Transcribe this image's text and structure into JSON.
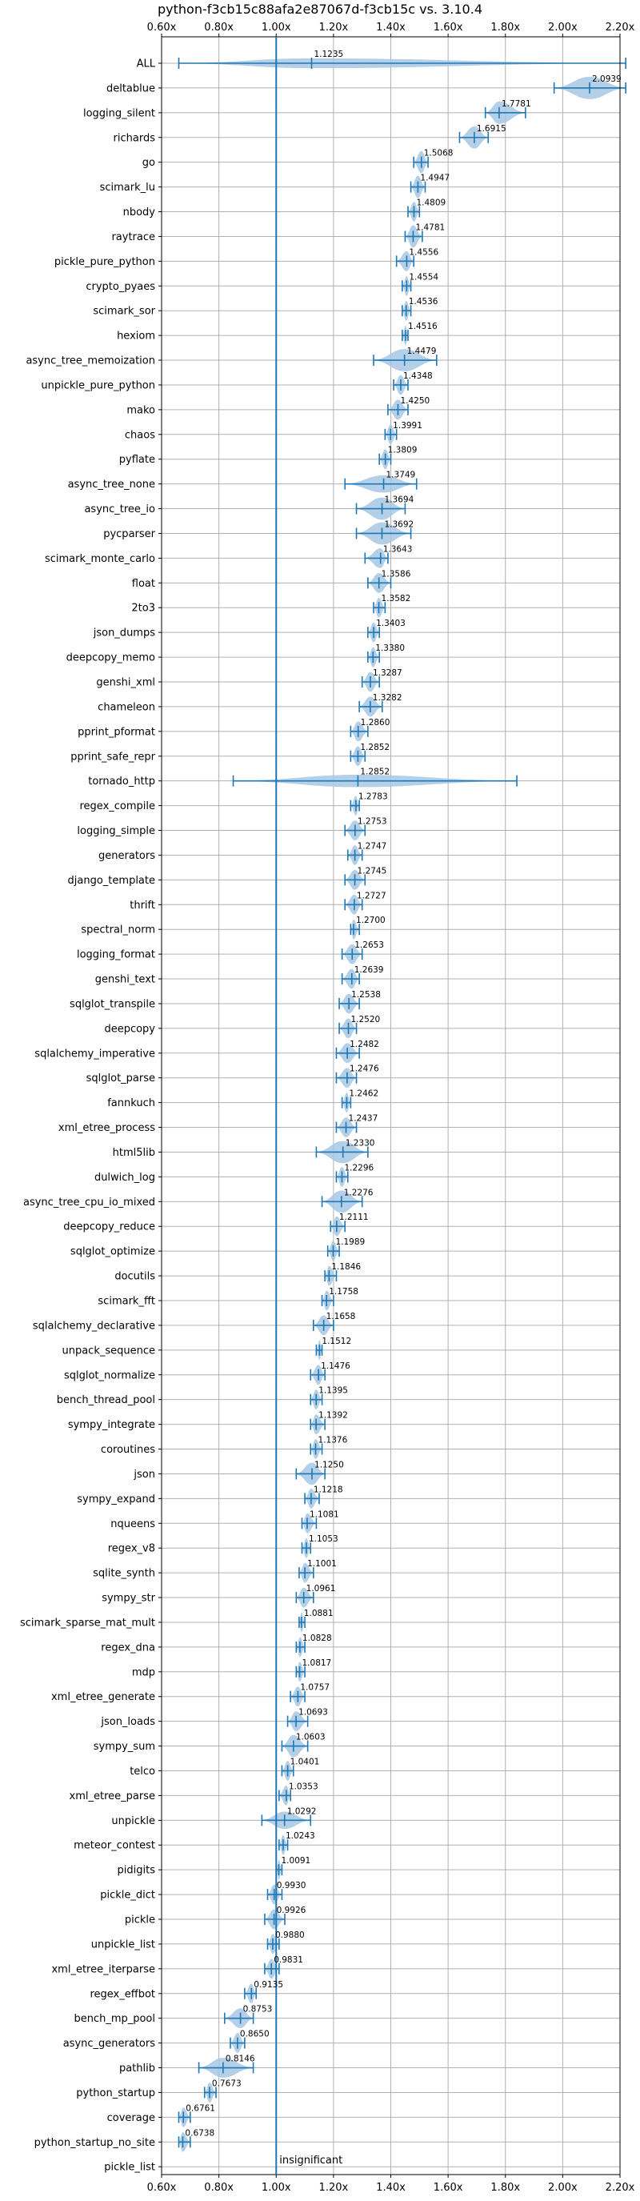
{
  "chart_data": {
    "type": "violin",
    "title": "python-f3cb15c88afa2e87067d-f3cb15c vs. 3.10.4",
    "xlim": [
      0.6,
      2.2
    ],
    "xticks": [
      0.6,
      0.8,
      1.0,
      1.2,
      1.4,
      1.6,
      1.8,
      2.0,
      2.2
    ],
    "xtick_labels": [
      "0.60x",
      "0.80x",
      "1.00x",
      "1.20x",
      "1.40x",
      "1.60x",
      "1.80x",
      "2.00x",
      "2.20x"
    ],
    "reference_line": 1.0,
    "reference_label": "insignificant",
    "grid": true,
    "categories": [
      "ALL",
      "deltablue",
      "logging_silent",
      "richards",
      "go",
      "scimark_lu",
      "nbody",
      "raytrace",
      "pickle_pure_python",
      "crypto_pyaes",
      "scimark_sor",
      "hexiom",
      "async_tree_memoization",
      "unpickle_pure_python",
      "mako",
      "chaos",
      "pyflate",
      "async_tree_none",
      "async_tree_io",
      "pycparser",
      "scimark_monte_carlo",
      "float",
      "2to3",
      "json_dumps",
      "deepcopy_memo",
      "genshi_xml",
      "chameleon",
      "pprint_pformat",
      "pprint_safe_repr",
      "tornado_http",
      "regex_compile",
      "logging_simple",
      "generators",
      "django_template",
      "thrift",
      "spectral_norm",
      "logging_format",
      "genshi_text",
      "sqlglot_transpile",
      "deepcopy",
      "sqlalchemy_imperative",
      "sqlglot_parse",
      "fannkuch",
      "xml_etree_process",
      "html5lib",
      "dulwich_log",
      "async_tree_cpu_io_mixed",
      "deepcopy_reduce",
      "sqlglot_optimize",
      "docutils",
      "scimark_fft",
      "sqlalchemy_declarative",
      "unpack_sequence",
      "sqlglot_normalize",
      "bench_thread_pool",
      "sympy_integrate",
      "coroutines",
      "json",
      "sympy_expand",
      "nqueens",
      "regex_v8",
      "sqlite_synth",
      "sympy_str",
      "scimark_sparse_mat_mult",
      "regex_dna",
      "mdp",
      "xml_etree_generate",
      "json_loads",
      "sympy_sum",
      "telco",
      "xml_etree_parse",
      "unpickle",
      "meteor_contest",
      "pidigits",
      "pickle_dict",
      "pickle",
      "unpickle_list",
      "xml_etree_iterparse",
      "regex_effbot",
      "bench_mp_pool",
      "async_generators",
      "pathlib",
      "python_startup",
      "coverage",
      "python_startup_no_site",
      "pickle_list"
    ],
    "values": [
      1.1235,
      2.0939,
      1.7781,
      1.6915,
      1.5068,
      1.4947,
      1.4809,
      1.4781,
      1.4556,
      1.4554,
      1.4536,
      1.4516,
      1.4479,
      1.4348,
      1.425,
      1.3991,
      1.3809,
      1.3749,
      1.3694,
      1.3692,
      1.3643,
      1.3586,
      1.3582,
      1.3403,
      1.338,
      1.3287,
      1.3282,
      1.286,
      1.2852,
      1.2852,
      1.2783,
      1.2753,
      1.2747,
      1.2745,
      1.2727,
      1.27,
      1.2653,
      1.2639,
      1.2538,
      1.252,
      1.2482,
      1.2476,
      1.2462,
      1.2437,
      1.233,
      1.2296,
      1.2276,
      1.2111,
      1.1989,
      1.1846,
      1.1758,
      1.1658,
      1.1512,
      1.1476,
      1.1395,
      1.1392,
      1.1376,
      1.125,
      1.1218,
      1.1081,
      1.1053,
      1.1001,
      1.0961,
      1.0881,
      1.0828,
      1.0817,
      1.0757,
      1.0693,
      1.0603,
      1.0401,
      1.0353,
      1.0292,
      1.0243,
      1.0091,
      0.993,
      0.9926,
      0.988,
      0.9831,
      0.9135,
      0.8753,
      0.865,
      0.8146,
      0.7673,
      0.6761,
      0.6738,
      null
    ],
    "value_labels": [
      "1.1235",
      "2.0939",
      "1.7781",
      "1.6915",
      "1.5068",
      "1.4947",
      "1.4809",
      "1.4781",
      "1.4556",
      "1.4554",
      "1.4536",
      "1.4516",
      "1.4479",
      "1.4348",
      "1.4250",
      "1.3991",
      "1.3809",
      "1.3749",
      "1.3694",
      "1.3692",
      "1.3643",
      "1.3586",
      "1.3582",
      "1.3403",
      "1.3380",
      "1.3287",
      "1.3282",
      "1.2860",
      "1.2852",
      "1.2852",
      "1.2783",
      "1.2753",
      "1.2747",
      "1.2745",
      "1.2727",
      "1.2700",
      "1.2653",
      "1.2639",
      "1.2538",
      "1.2520",
      "1.2482",
      "1.2476",
      "1.2462",
      "1.2437",
      "1.2330",
      "1.2296",
      "1.2276",
      "1.2111",
      "1.1989",
      "1.1846",
      "1.1758",
      "1.1658",
      "1.1512",
      "1.1476",
      "1.1395",
      "1.1392",
      "1.1376",
      "1.1250",
      "1.1218",
      "1.1081",
      "1.1053",
      "1.1001",
      "1.0961",
      "1.0881",
      "1.0828",
      "1.0817",
      "1.0757",
      "1.0693",
      "1.0603",
      "1.0401",
      "1.0353",
      "1.0292",
      "1.0243",
      "1.0091",
      "0.9930",
      "0.9926",
      "0.9880",
      "0.9831",
      "0.9135",
      "0.8753",
      "0.8650",
      "0.8146",
      "0.7673",
      "0.6761",
      "0.6738",
      ""
    ],
    "ranges": [
      [
        0.66,
        2.22
      ],
      [
        1.97,
        2.22
      ],
      [
        1.73,
        1.87
      ],
      [
        1.64,
        1.74
      ],
      [
        1.48,
        1.53
      ],
      [
        1.47,
        1.52
      ],
      [
        1.46,
        1.5
      ],
      [
        1.45,
        1.51
      ],
      [
        1.42,
        1.48
      ],
      [
        1.44,
        1.47
      ],
      [
        1.44,
        1.47
      ],
      [
        1.44,
        1.46
      ],
      [
        1.34,
        1.56
      ],
      [
        1.41,
        1.46
      ],
      [
        1.39,
        1.46
      ],
      [
        1.38,
        1.42
      ],
      [
        1.36,
        1.4
      ],
      [
        1.24,
        1.49
      ],
      [
        1.28,
        1.45
      ],
      [
        1.28,
        1.47
      ],
      [
        1.31,
        1.39
      ],
      [
        1.32,
        1.4
      ],
      [
        1.34,
        1.38
      ],
      [
        1.32,
        1.36
      ],
      [
        1.32,
        1.36
      ],
      [
        1.3,
        1.36
      ],
      [
        1.29,
        1.37
      ],
      [
        1.26,
        1.32
      ],
      [
        1.26,
        1.31
      ],
      [
        0.85,
        1.84
      ],
      [
        1.26,
        1.29
      ],
      [
        1.24,
        1.31
      ],
      [
        1.25,
        1.3
      ],
      [
        1.24,
        1.31
      ],
      [
        1.24,
        1.3
      ],
      [
        1.26,
        1.29
      ],
      [
        1.23,
        1.3
      ],
      [
        1.23,
        1.29
      ],
      [
        1.22,
        1.29
      ],
      [
        1.22,
        1.28
      ],
      [
        1.21,
        1.29
      ],
      [
        1.21,
        1.28
      ],
      [
        1.23,
        1.26
      ],
      [
        1.21,
        1.28
      ],
      [
        1.14,
        1.32
      ],
      [
        1.21,
        1.25
      ],
      [
        1.16,
        1.3
      ],
      [
        1.19,
        1.24
      ],
      [
        1.18,
        1.22
      ],
      [
        1.17,
        1.21
      ],
      [
        1.16,
        1.2
      ],
      [
        1.13,
        1.2
      ],
      [
        1.14,
        1.16
      ],
      [
        1.12,
        1.17
      ],
      [
        1.12,
        1.16
      ],
      [
        1.12,
        1.17
      ],
      [
        1.12,
        1.16
      ],
      [
        1.07,
        1.17
      ],
      [
        1.1,
        1.15
      ],
      [
        1.09,
        1.14
      ],
      [
        1.09,
        1.12
      ],
      [
        1.08,
        1.13
      ],
      [
        1.07,
        1.13
      ],
      [
        1.08,
        1.1
      ],
      [
        1.07,
        1.1
      ],
      [
        1.07,
        1.1
      ],
      [
        1.05,
        1.1
      ],
      [
        1.04,
        1.11
      ],
      [
        1.02,
        1.11
      ],
      [
        1.02,
        1.06
      ],
      [
        1.01,
        1.05
      ],
      [
        0.95,
        1.12
      ],
      [
        1.01,
        1.04
      ],
      [
        1.0,
        1.02
      ],
      [
        0.97,
        1.02
      ],
      [
        0.96,
        1.03
      ],
      [
        0.97,
        1.01
      ],
      [
        0.96,
        1.01
      ],
      [
        0.89,
        0.93
      ],
      [
        0.82,
        0.92
      ],
      [
        0.84,
        0.89
      ],
      [
        0.73,
        0.92
      ],
      [
        0.75,
        0.79
      ],
      [
        0.66,
        0.7
      ],
      [
        0.66,
        0.7
      ],
      null
    ],
    "spreads": [
      0.4,
      0.9,
      0.9,
      0.9,
      0.9,
      0.9,
      0.8,
      0.9,
      0.8,
      0.8,
      0.8,
      0.8,
      0.9,
      0.8,
      0.8,
      0.8,
      0.8,
      0.7,
      0.9,
      0.9,
      0.8,
      0.8,
      0.8,
      0.8,
      0.8,
      0.8,
      0.8,
      0.8,
      0.8,
      0.5,
      0.8,
      0.8,
      0.8,
      0.8,
      0.8,
      0.8,
      0.8,
      0.8,
      0.8,
      0.8,
      0.8,
      0.8,
      0.8,
      0.8,
      0.9,
      0.8,
      0.9,
      0.8,
      0.8,
      0.8,
      0.8,
      0.8,
      0.8,
      0.8,
      0.8,
      0.8,
      0.8,
      0.9,
      0.8,
      0.8,
      0.8,
      0.8,
      0.8,
      0.8,
      0.8,
      0.8,
      0.8,
      0.8,
      0.9,
      0.8,
      0.8,
      0.7,
      0.8,
      0.8,
      0.8,
      0.8,
      0.8,
      0.8,
      0.8,
      0.8,
      0.8,
      0.8,
      0.8,
      0.8,
      0.8,
      0
    ],
    "colors": {
      "violin_fill": "#a6c8e4",
      "line": "#1f77b4",
      "grid": "#b0b0b0",
      "axis": "#000000"
    }
  }
}
